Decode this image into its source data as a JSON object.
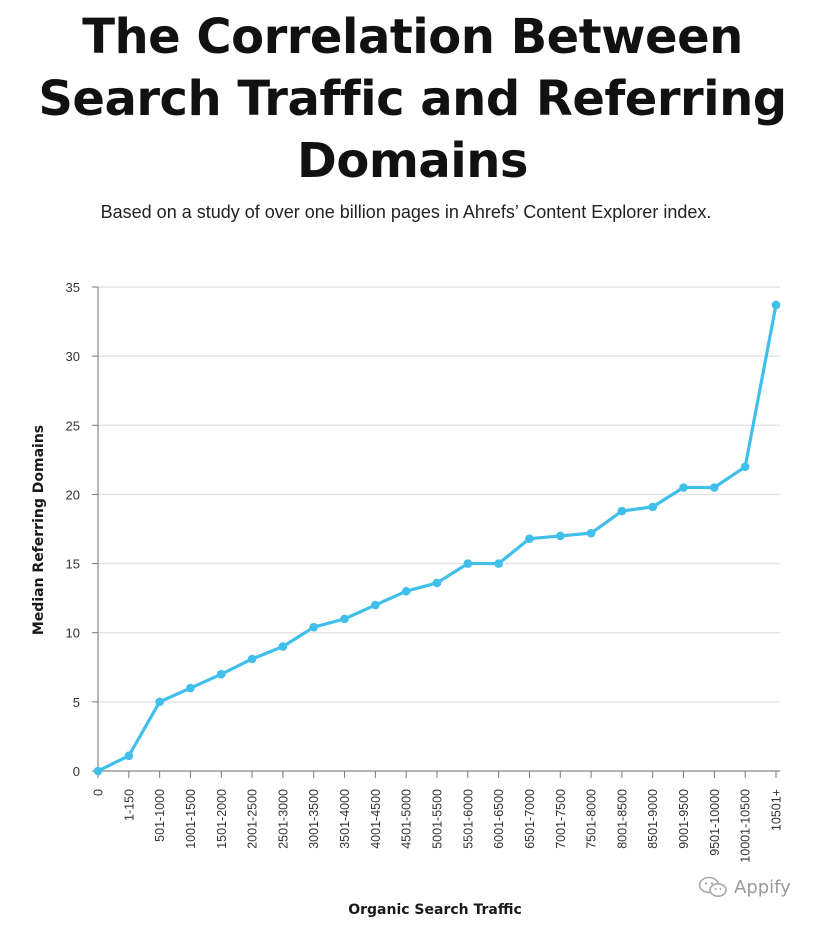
{
  "header": {
    "title_lines": [
      "The Correlation Between",
      "Search Traffic and Referring",
      "Domains"
    ],
    "subtitle": "Based on a study of over one billion pages in Ahrefs’ Content Explorer index."
  },
  "watermark": {
    "text": "Appify",
    "icon": "wechat-icon"
  },
  "chart_data": {
    "type": "line",
    "xlabel": "Organic Search Traffic",
    "ylabel": "Median Referring Domains",
    "ylim": [
      0,
      35
    ],
    "yticks": [
      0,
      5,
      10,
      15,
      20,
      25,
      30,
      35
    ],
    "grid": true,
    "line_color": "#3fbfea",
    "categories": [
      "0",
      "1-150",
      "501-1000",
      "1001-1500",
      "1501-2000",
      "2001-2500",
      "2501-3000",
      "3001-3500",
      "3501-4000",
      "4001-4500",
      "4501-5000",
      "5001-5500",
      "5501-6000",
      "6001-6500",
      "6501-7000",
      "7001-7500",
      "7501-8000",
      "8001-8500",
      "8501-9000",
      "9001-9500",
      "9501-10000",
      "10001-10500",
      "10501+"
    ],
    "series": [
      {
        "values": [
          0,
          1.1,
          5,
          6,
          7,
          8.1,
          9,
          10.4,
          11,
          12,
          13,
          13.6,
          15,
          15,
          16.8,
          17,
          17.2,
          18.8,
          19.1,
          20.5,
          20.5,
          22,
          33.7
        ]
      }
    ]
  }
}
